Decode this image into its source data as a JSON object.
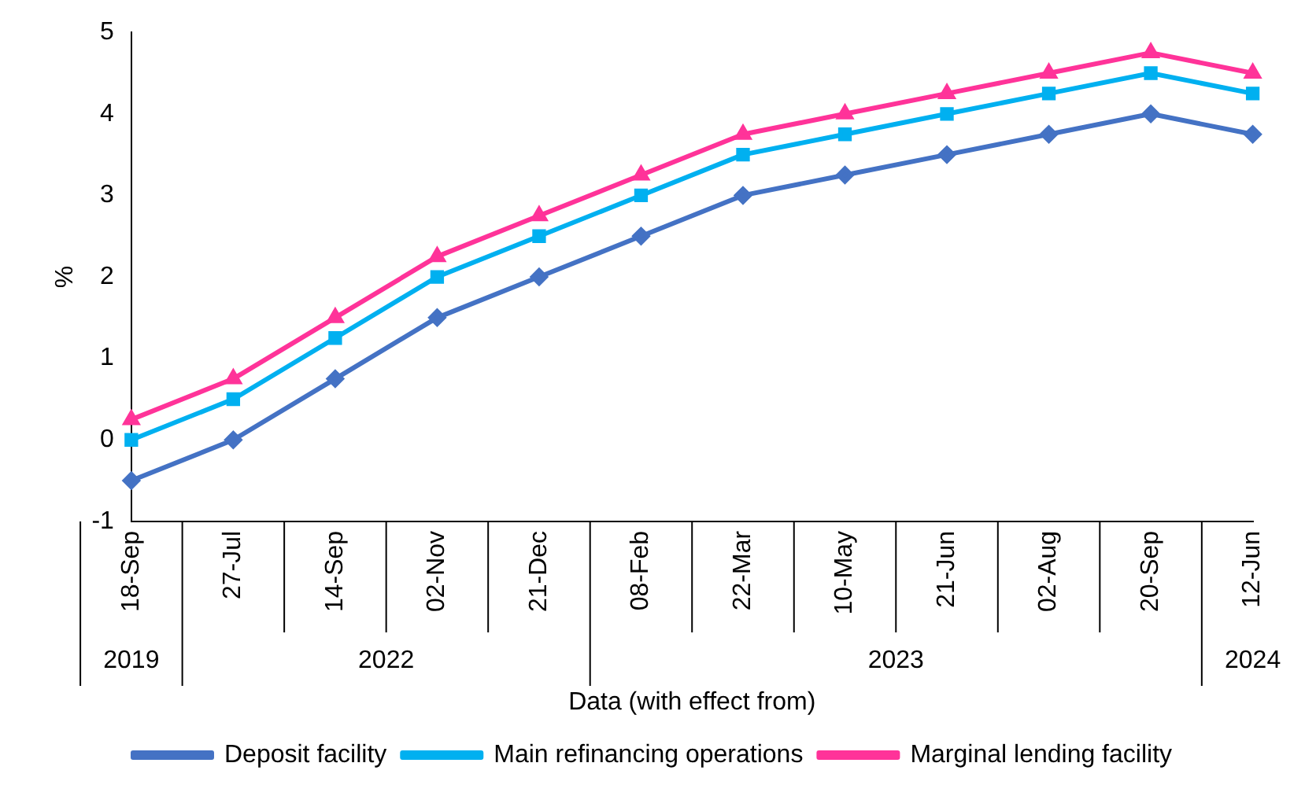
{
  "chart_data": {
    "type": "line",
    "ylabel": "%",
    "xlabel": "Data (with effect from)",
    "categories": [
      "18-Sep",
      "27-Jul",
      "14-Sep",
      "02-Nov",
      "21-Dec",
      "08-Feb",
      "22-Mar",
      "10-May",
      "21-Jun",
      "02-Aug",
      "20-Sep",
      "12-Jun"
    ],
    "series": [
      {
        "name": "Deposit facility",
        "color": "#4472c4",
        "marker": "diamond",
        "values": [
          -0.5,
          0,
          0.75,
          1.5,
          2,
          2.5,
          3,
          3.25,
          3.5,
          3.75,
          4,
          3.75
        ]
      },
      {
        "name": "Main refinancing operations",
        "color": "#00b0f0",
        "marker": "square",
        "values": [
          0,
          0.5,
          1.25,
          2,
          2.5,
          3,
          3.5,
          3.75,
          4,
          4.25,
          4.5,
          4.25
        ]
      },
      {
        "name": "Marginal lending facility",
        "color": "#ff3399",
        "marker": "triangle",
        "values": [
          0.25,
          0.75,
          1.5,
          2.25,
          2.75,
          3.25,
          3.75,
          4,
          4.25,
          4.5,
          4.75,
          4.5
        ]
      }
    ],
    "annotations": [
      "2019",
      "2022",
      "2023",
      "2024"
    ],
    "ylim": [
      -1,
      5
    ],
    "yticks": [
      -1,
      0,
      1,
      2,
      3,
      4,
      5
    ],
    "grid": false,
    "legend": "bottom",
    "line_style": "solid"
  }
}
